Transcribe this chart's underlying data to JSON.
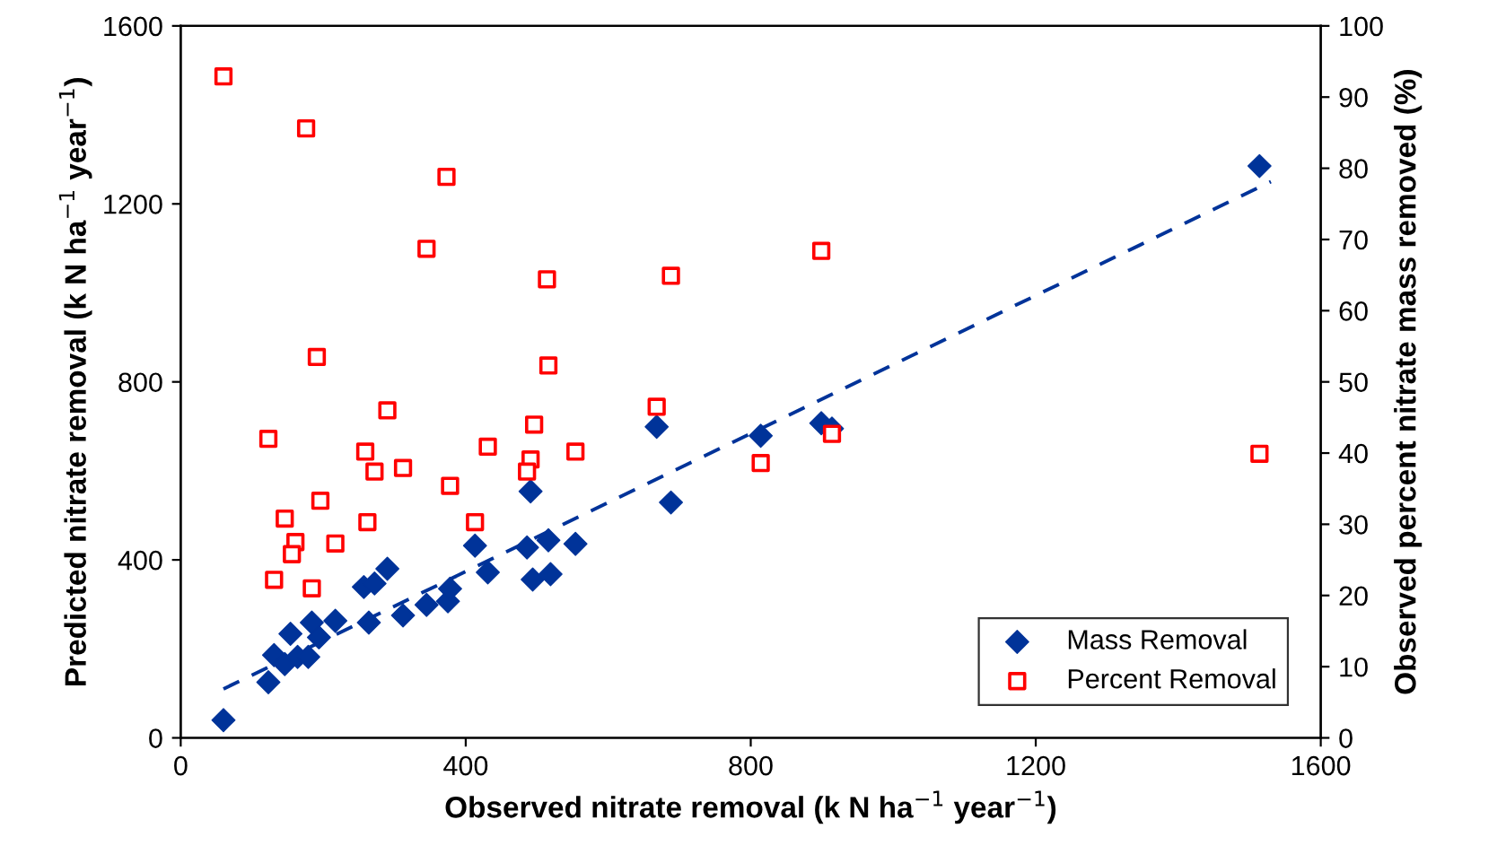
{
  "chart_data": {
    "type": "scatter",
    "xlabel": "Observed nitrate removal (k N ha$^{−1}$ year$^{−1}$)",
    "ylabel": "Predicted nitrate removal (k N ha$^{−1}$ year$^{−1}$)",
    "y2label": "Observed percent nitrate mass removed (%)",
    "xlim": [
      0,
      1600
    ],
    "xticks": [
      0,
      400,
      800,
      1200,
      1600
    ],
    "ylim": [
      0,
      1600
    ],
    "yticks": [
      0,
      400,
      800,
      1200,
      1600
    ],
    "y2lim": [
      0,
      100
    ],
    "y2ticks": [
      0,
      10,
      20,
      30,
      40,
      50,
      60,
      70,
      80,
      90,
      100
    ],
    "grid": false,
    "legend": "bottom right",
    "series": [
      {
        "name": "Mass Removal",
        "marker": "diamond",
        "color": "#003399",
        "x": [
          60,
          123,
          131,
          146,
          154,
          164,
          179,
          184,
          194,
          217,
          257,
          272,
          290,
          264,
          312,
          345,
          375,
          378,
          413,
          431,
          486,
          494,
          491,
          519,
          516,
          554,
          668,
          688,
          814,
          899,
          914,
          1514
        ],
        "values": [
          40,
          125,
          186,
          166,
          234,
          182,
          182,
          259,
          226,
          263,
          339,
          347,
          380,
          259,
          275,
          299,
          307,
          335,
          432,
          372,
          428,
          356,
          554,
          368,
          444,
          436,
          699,
          529,
          679,
          707,
          695,
          1285
        ]
      },
      {
        "name": "Percent Removal",
        "marker": "square",
        "axis": "y2",
        "color": "#ff0000",
        "x": [
          60,
          176,
          373,
          345,
          514,
          688,
          899,
          191,
          516,
          290,
          496,
          668,
          123,
          259,
          272,
          312,
          431,
          491,
          486,
          554,
          196,
          146,
          262,
          378,
          413,
          161,
          217,
          156,
          131,
          184,
          814,
          914,
          1514
        ],
        "values": [
          92.9,
          85.6,
          78.8,
          68.7,
          64.4,
          64.9,
          68.4,
          53.5,
          52.3,
          46,
          44,
          46.5,
          42,
          40.2,
          37.4,
          37.9,
          40.9,
          39.1,
          37.4,
          40.2,
          33.3,
          30.8,
          30.3,
          35.4,
          30.3,
          27.5,
          27.3,
          25.8,
          22.2,
          21,
          38.6,
          42.7,
          39.9
        ]
      },
      {
        "type": "line",
        "line_style": "dashed",
        "marker": "none",
        "color": "#003399",
        "x": [
          60,
          1530
        ],
        "values": [
          110,
          1250
        ]
      }
    ]
  }
}
